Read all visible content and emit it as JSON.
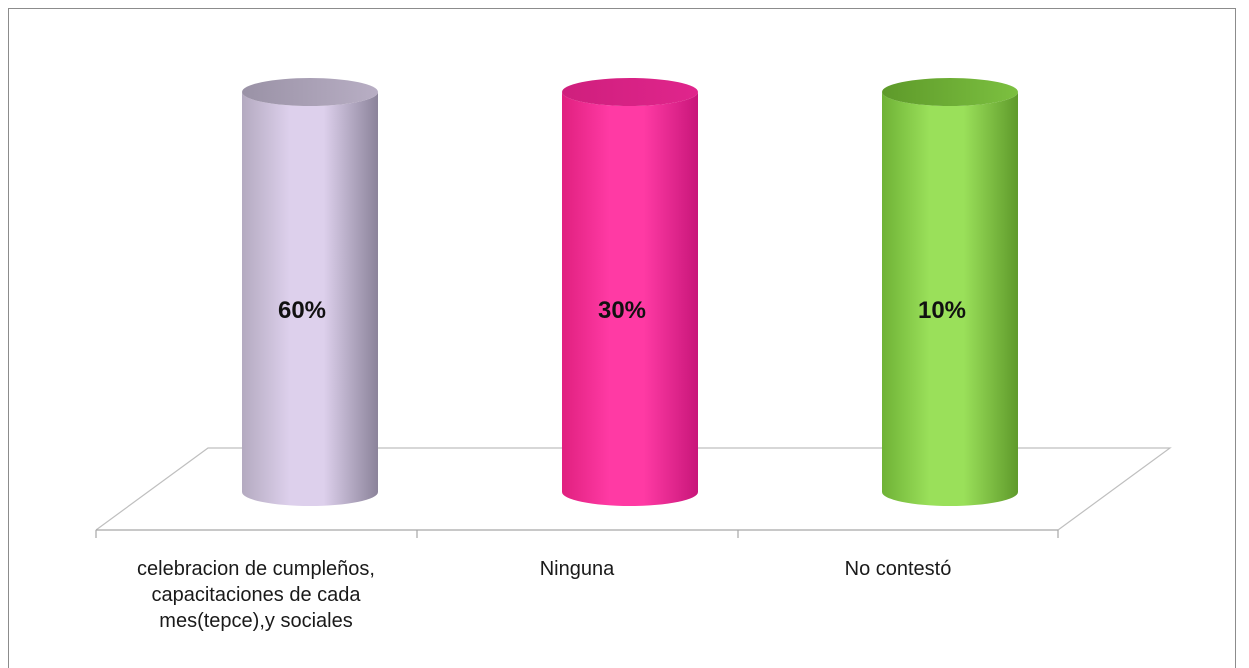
{
  "chart_data": {
    "type": "bar",
    "style": "3d-cylinder",
    "categories": [
      "celebracion de cumpleños, capacitaciones de cada mes(tepce),y sociales",
      "Ninguna",
      "No contestó"
    ],
    "category_lines": [
      [
        "celebracion de cumpleños,",
        "capacitaciones de cada",
        "mes(tepce),y sociales"
      ],
      [
        "Ninguna"
      ],
      [
        "No contestó"
      ]
    ],
    "values": [
      60,
      30,
      10
    ],
    "value_labels": [
      "60%",
      "30%",
      "10%"
    ],
    "unit": "%",
    "colors": [
      "#cfc2e6",
      "#ff2f9c",
      "#88d84a"
    ],
    "title": "",
    "xlabel": "",
    "ylabel": "",
    "legend": "none",
    "grid": false
  }
}
